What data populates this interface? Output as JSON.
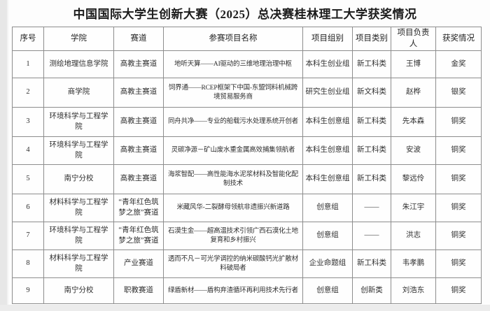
{
  "title": "中国国际大学生创新大赛（2025）总决赛桂林理工大学获奖情况",
  "table": {
    "headers": [
      "序号",
      "学院",
      "赛道",
      "参赛项目名称",
      "项目组别",
      "项目类别",
      "项目负责人",
      "获奖情况"
    ],
    "rows": [
      [
        "1",
        "测绘地理信息学院",
        "高教主赛道",
        "地听天算——AI驱动的三维地理治理中枢",
        "本科生创业组",
        "新工科类",
        "王博",
        "金奖"
      ],
      [
        "2",
        "商学院",
        "高教主赛道",
        "饲界通——RCEP框架下中国-东盟饲料机械跨境贸易服务商",
        "研究生创业组",
        "新文科类",
        "赵桦",
        "银奖"
      ],
      [
        "3",
        "环境科学与工程学院",
        "高教主赛道",
        "同舟共净——专业的船载污水处理系统开创者",
        "本科生创意组",
        "新工科类",
        "先本森",
        "铜奖"
      ],
      [
        "4",
        "环境科学与工程学院",
        "高教主赛道",
        "灵碳净源－矿山废水重金属高效捕集领航者",
        "本科生创意组",
        "新工科类",
        "安波",
        "铜奖"
      ],
      [
        "5",
        "南宁分校",
        "高教主赛道",
        "海浆智配——高性能海水泥浆材料及智能化配制技术",
        "本科生创意组",
        "新工科类",
        "黎远伶",
        "铜奖"
      ],
      [
        "6",
        "材料科学与工程学院",
        "“青年红色筑梦之旅”赛道",
        "米藏风华-二裂酵母领航非遗振兴新道路",
        "创意组",
        "——",
        "朱江宇",
        "铜奖"
      ],
      [
        "7",
        "环境科学与工程学院",
        "“青年红色筑梦之旅”赛道",
        "石漠生金——超高温技术引领广西石漠化土地复育和乡村振兴",
        "创意组",
        "——",
        "洪志",
        "铜奖"
      ],
      [
        "8",
        "材料科学与工程学院",
        "产业赛道",
        "透而不凡－可光学调控的纳米碳酸钙光扩散材料破局者",
        "企业命题组",
        "新工科类",
        "韦孝鹏",
        "铜奖"
      ],
      [
        "9",
        "南宁分校",
        "职教赛道",
        "绿盾新材——盾构弃渣循环再利用技术先行者",
        "创意组",
        "创新类",
        "刘浩东",
        "铜奖"
      ]
    ]
  },
  "colors": {
    "border": "#8d8d8d",
    "text": "#2e2e2e",
    "page_background": "#fdfdfd",
    "edge_background": "#e7e7e7"
  }
}
